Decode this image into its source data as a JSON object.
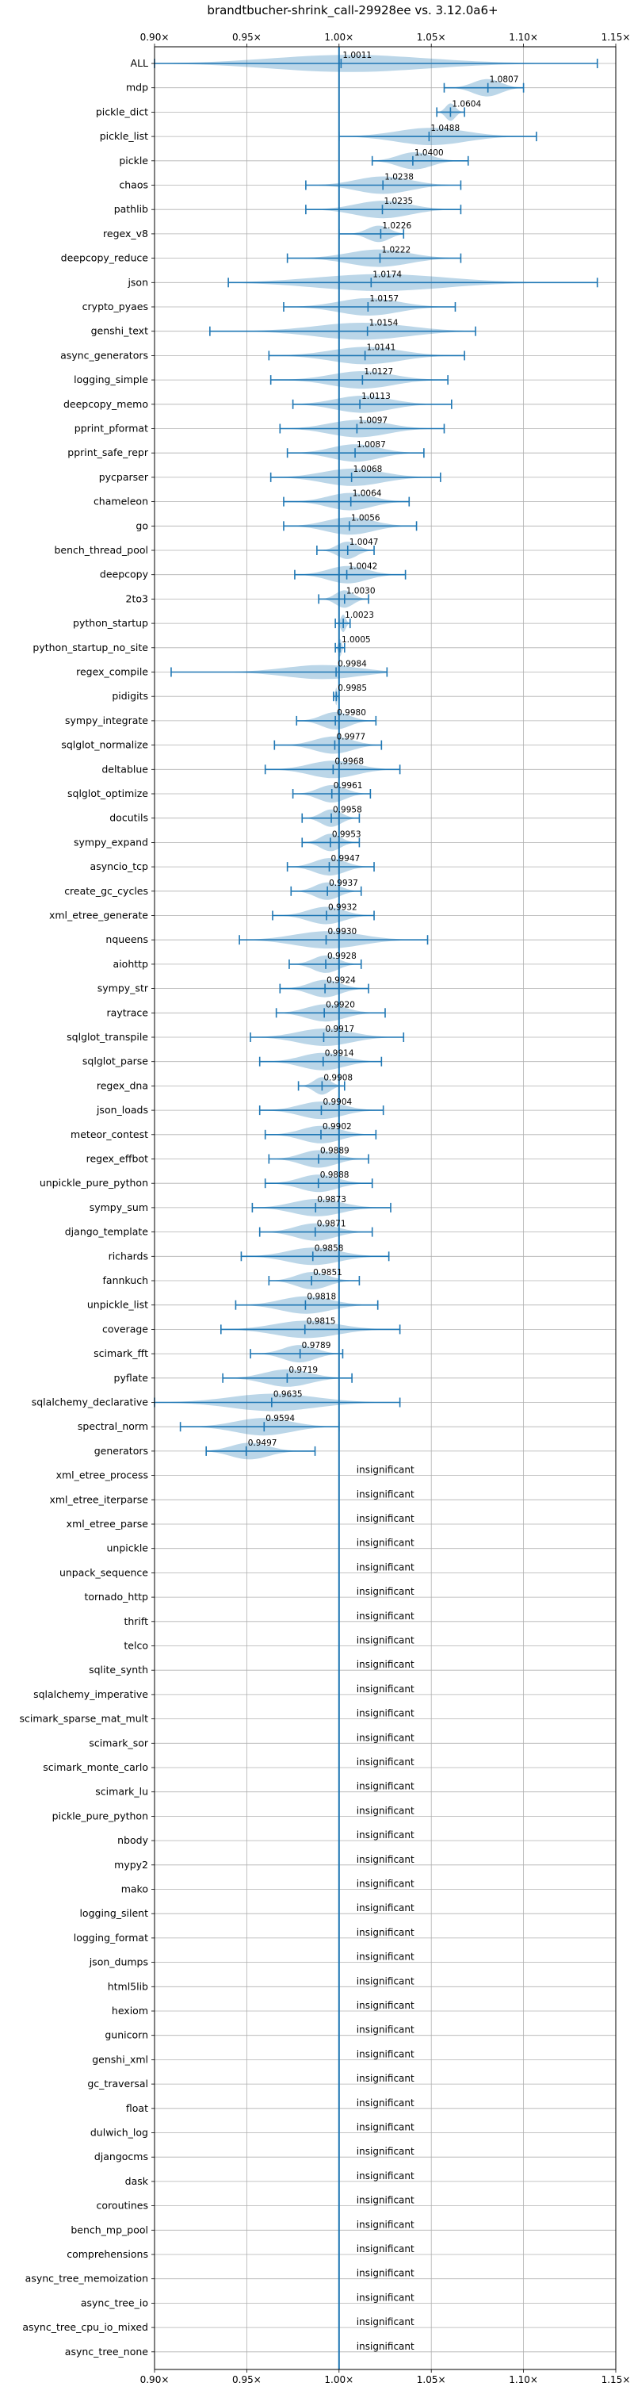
{
  "chart_data": {
    "type": "violin",
    "title": "brandtbucher-shrink_call-29928ee vs. 3.12.0a6+",
    "xlim": [
      0.9,
      1.15
    ],
    "xticks": [
      0.9,
      0.95,
      1.0,
      1.05,
      1.1,
      1.15
    ],
    "xtick_labels": [
      "0.90×",
      "0.95×",
      "1.00×",
      "1.05×",
      "1.10×",
      "1.15×"
    ],
    "reference_line": 1.0,
    "grid": true,
    "insignificant_label": "insignificant",
    "benchmarks": [
      {
        "name": "ALL",
        "value": 1.0011,
        "label": "1.0011",
        "min": 0.9,
        "max": 1.14
      },
      {
        "name": "mdp",
        "value": 1.0807,
        "label": "1.0807",
        "min": 1.057,
        "max": 1.1
      },
      {
        "name": "pickle_dict",
        "value": 1.0604,
        "label": "1.0604",
        "min": 1.053,
        "max": 1.068
      },
      {
        "name": "pickle_list",
        "value": 1.0488,
        "label": "1.0488",
        "min": 1.0,
        "max": 1.107
      },
      {
        "name": "pickle",
        "value": 1.04,
        "label": "1.0400",
        "min": 1.018,
        "max": 1.07
      },
      {
        "name": "chaos",
        "value": 1.0238,
        "label": "1.0238",
        "min": 0.982,
        "max": 1.066
      },
      {
        "name": "pathlib",
        "value": 1.0235,
        "label": "1.0235",
        "min": 0.982,
        "max": 1.066
      },
      {
        "name": "regex_v8",
        "value": 1.0226,
        "label": "1.0226",
        "min": 1.0,
        "max": 1.035
      },
      {
        "name": "deepcopy_reduce",
        "value": 1.0222,
        "label": "1.0222",
        "min": 0.972,
        "max": 1.066
      },
      {
        "name": "json",
        "value": 1.0174,
        "label": "1.0174",
        "min": 0.94,
        "max": 1.14
      },
      {
        "name": "crypto_pyaes",
        "value": 1.0157,
        "label": "1.0157",
        "min": 0.97,
        "max": 1.063
      },
      {
        "name": "genshi_text",
        "value": 1.0154,
        "label": "1.0154",
        "min": 0.93,
        "max": 1.074
      },
      {
        "name": "async_generators",
        "value": 1.0141,
        "label": "1.0141",
        "min": 0.962,
        "max": 1.068
      },
      {
        "name": "logging_simple",
        "value": 1.0127,
        "label": "1.0127",
        "min": 0.963,
        "max": 1.059
      },
      {
        "name": "deepcopy_memo",
        "value": 1.0113,
        "label": "1.0113",
        "min": 0.975,
        "max": 1.061
      },
      {
        "name": "pprint_pformat",
        "value": 1.0097,
        "label": "1.0097",
        "min": 0.968,
        "max": 1.057
      },
      {
        "name": "pprint_safe_repr",
        "value": 1.0087,
        "label": "1.0087",
        "min": 0.972,
        "max": 1.046
      },
      {
        "name": "pycparser",
        "value": 1.0068,
        "label": "1.0068",
        "min": 0.963,
        "max": 1.055
      },
      {
        "name": "chameleon",
        "value": 1.0064,
        "label": "1.0064",
        "min": 0.97,
        "max": 1.038
      },
      {
        "name": "go",
        "value": 1.0056,
        "label": "1.0056",
        "min": 0.97,
        "max": 1.042
      },
      {
        "name": "bench_thread_pool",
        "value": 1.0047,
        "label": "1.0047",
        "min": 0.988,
        "max": 1.019
      },
      {
        "name": "deepcopy",
        "value": 1.0042,
        "label": "1.0042",
        "min": 0.976,
        "max": 1.036
      },
      {
        "name": "2to3",
        "value": 1.003,
        "label": "1.0030",
        "min": 0.989,
        "max": 1.016
      },
      {
        "name": "python_startup",
        "value": 1.0023,
        "label": "1.0023",
        "min": 0.998,
        "max": 1.006
      },
      {
        "name": "python_startup_no_site",
        "value": 1.0005,
        "label": "1.0005",
        "min": 0.998,
        "max": 1.003
      },
      {
        "name": "regex_compile",
        "value": 0.9984,
        "label": "0.9984",
        "min": 0.909,
        "max": 1.026
      },
      {
        "name": "pidigits",
        "value": 0.9985,
        "label": "0.9985",
        "min": 0.997,
        "max": 1.0
      },
      {
        "name": "sympy_integrate",
        "value": 0.998,
        "label": "0.9980",
        "min": 0.977,
        "max": 1.02
      },
      {
        "name": "sqlglot_normalize",
        "value": 0.9977,
        "label": "0.9977",
        "min": 0.965,
        "max": 1.023
      },
      {
        "name": "deltablue",
        "value": 0.9968,
        "label": "0.9968",
        "min": 0.96,
        "max": 1.033
      },
      {
        "name": "sqlglot_optimize",
        "value": 0.9961,
        "label": "0.9961",
        "min": 0.975,
        "max": 1.017
      },
      {
        "name": "docutils",
        "value": 0.9958,
        "label": "0.9958",
        "min": 0.98,
        "max": 1.011
      },
      {
        "name": "sympy_expand",
        "value": 0.9953,
        "label": "0.9953",
        "min": 0.98,
        "max": 1.011
      },
      {
        "name": "asyncio_tcp",
        "value": 0.9947,
        "label": "0.9947",
        "min": 0.972,
        "max": 1.019
      },
      {
        "name": "create_gc_cycles",
        "value": 0.9937,
        "label": "0.9937",
        "min": 0.974,
        "max": 1.012
      },
      {
        "name": "xml_etree_generate",
        "value": 0.9932,
        "label": "0.9932",
        "min": 0.964,
        "max": 1.019
      },
      {
        "name": "nqueens",
        "value": 0.993,
        "label": "0.9930",
        "min": 0.946,
        "max": 1.048
      },
      {
        "name": "aiohttp",
        "value": 0.9928,
        "label": "0.9928",
        "min": 0.973,
        "max": 1.012
      },
      {
        "name": "sympy_str",
        "value": 0.9924,
        "label": "0.9924",
        "min": 0.968,
        "max": 1.016
      },
      {
        "name": "raytrace",
        "value": 0.992,
        "label": "0.9920",
        "min": 0.966,
        "max": 1.025
      },
      {
        "name": "sqlglot_transpile",
        "value": 0.9917,
        "label": "0.9917",
        "min": 0.952,
        "max": 1.035
      },
      {
        "name": "sqlglot_parse",
        "value": 0.9914,
        "label": "0.9914",
        "min": 0.957,
        "max": 1.023
      },
      {
        "name": "regex_dna",
        "value": 0.9908,
        "label": "0.9908",
        "min": 0.978,
        "max": 1.003
      },
      {
        "name": "json_loads",
        "value": 0.9904,
        "label": "0.9904",
        "min": 0.957,
        "max": 1.024
      },
      {
        "name": "meteor_contest",
        "value": 0.9902,
        "label": "0.9902",
        "min": 0.96,
        "max": 1.02
      },
      {
        "name": "regex_effbot",
        "value": 0.9889,
        "label": "0.9889",
        "min": 0.962,
        "max": 1.016
      },
      {
        "name": "unpickle_pure_python",
        "value": 0.9888,
        "label": "0.9888",
        "min": 0.96,
        "max": 1.018
      },
      {
        "name": "sympy_sum",
        "value": 0.9873,
        "label": "0.9873",
        "min": 0.953,
        "max": 1.028
      },
      {
        "name": "django_template",
        "value": 0.9871,
        "label": "0.9871",
        "min": 0.957,
        "max": 1.018
      },
      {
        "name": "richards",
        "value": 0.9858,
        "label": "0.9858",
        "min": 0.947,
        "max": 1.027
      },
      {
        "name": "fannkuch",
        "value": 0.9851,
        "label": "0.9851",
        "min": 0.962,
        "max": 1.011
      },
      {
        "name": "unpickle_list",
        "value": 0.9818,
        "label": "0.9818",
        "min": 0.944,
        "max": 1.021
      },
      {
        "name": "coverage",
        "value": 0.9815,
        "label": "0.9815",
        "min": 0.936,
        "max": 1.033
      },
      {
        "name": "scimark_fft",
        "value": 0.9789,
        "label": "0.9789",
        "min": 0.952,
        "max": 1.002
      },
      {
        "name": "pyflate",
        "value": 0.9719,
        "label": "0.9719",
        "min": 0.937,
        "max": 1.007
      },
      {
        "name": "sqlalchemy_declarative",
        "value": 0.9635,
        "label": "0.9635",
        "min": 0.9,
        "max": 1.033
      },
      {
        "name": "spectral_norm",
        "value": 0.9594,
        "label": "0.9594",
        "min": 0.914,
        "max": 1.0
      },
      {
        "name": "generators",
        "value": 0.9497,
        "label": "0.9497",
        "min": 0.928,
        "max": 0.987
      }
    ],
    "insignificant": [
      "xml_etree_process",
      "xml_etree_iterparse",
      "xml_etree_parse",
      "unpickle",
      "unpack_sequence",
      "tornado_http",
      "thrift",
      "telco",
      "sqlite_synth",
      "sqlalchemy_imperative",
      "scimark_sparse_mat_mult",
      "scimark_sor",
      "scimark_monte_carlo",
      "scimark_lu",
      "pickle_pure_python",
      "nbody",
      "mypy2",
      "mako",
      "logging_silent",
      "logging_format",
      "json_dumps",
      "html5lib",
      "hexiom",
      "gunicorn",
      "genshi_xml",
      "gc_traversal",
      "float",
      "dulwich_log",
      "djangocms",
      "dask",
      "coroutines",
      "bench_mp_pool",
      "comprehensions",
      "async_tree_memoization",
      "async_tree_io",
      "async_tree_cpu_io_mixed",
      "async_tree_none"
    ]
  }
}
